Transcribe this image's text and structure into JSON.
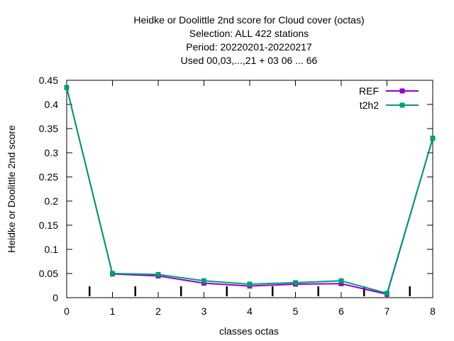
{
  "chart_data": {
    "type": "line",
    "title_lines": [
      "Heidke or Doolittle 2nd score  for Cloud cover (octas)",
      "Selection: ALL     422 stations",
      "Period: 20220201-20220217",
      "Used  00,03,...,21  + 03 06 ... 66"
    ],
    "xlabel": "classes octas",
    "ylabel": "Heidke or Doolittle 2nd score",
    "x": [
      0,
      1,
      2,
      3,
      4,
      5,
      6,
      7,
      8
    ],
    "xlim": [
      0,
      8
    ],
    "ylim": [
      0,
      0.45
    ],
    "x_ticks": [
      "0",
      "1",
      "2",
      "3",
      "4",
      "5",
      "6",
      "7",
      "8"
    ],
    "y_ticks": [
      "0",
      "0.05",
      "0.1",
      "0.15",
      "0.2",
      "0.25",
      "0.3",
      "0.35",
      "0.4",
      "0.45"
    ],
    "minor_x_ticks": [
      0.5,
      1.5,
      2.5,
      3.5,
      4.5,
      5.5,
      6.5,
      7.5
    ],
    "grid": false,
    "legend_position": "top-right",
    "series": [
      {
        "name": "REF",
        "color": "#9400d3",
        "values": [
          0.435,
          0.049,
          0.045,
          0.03,
          0.024,
          0.028,
          0.029,
          0.007,
          0.33
        ]
      },
      {
        "name": "t2h2",
        "color": "#009e73",
        "values": [
          0.435,
          0.05,
          0.048,
          0.035,
          0.028,
          0.031,
          0.035,
          0.009,
          0.33
        ]
      }
    ]
  }
}
